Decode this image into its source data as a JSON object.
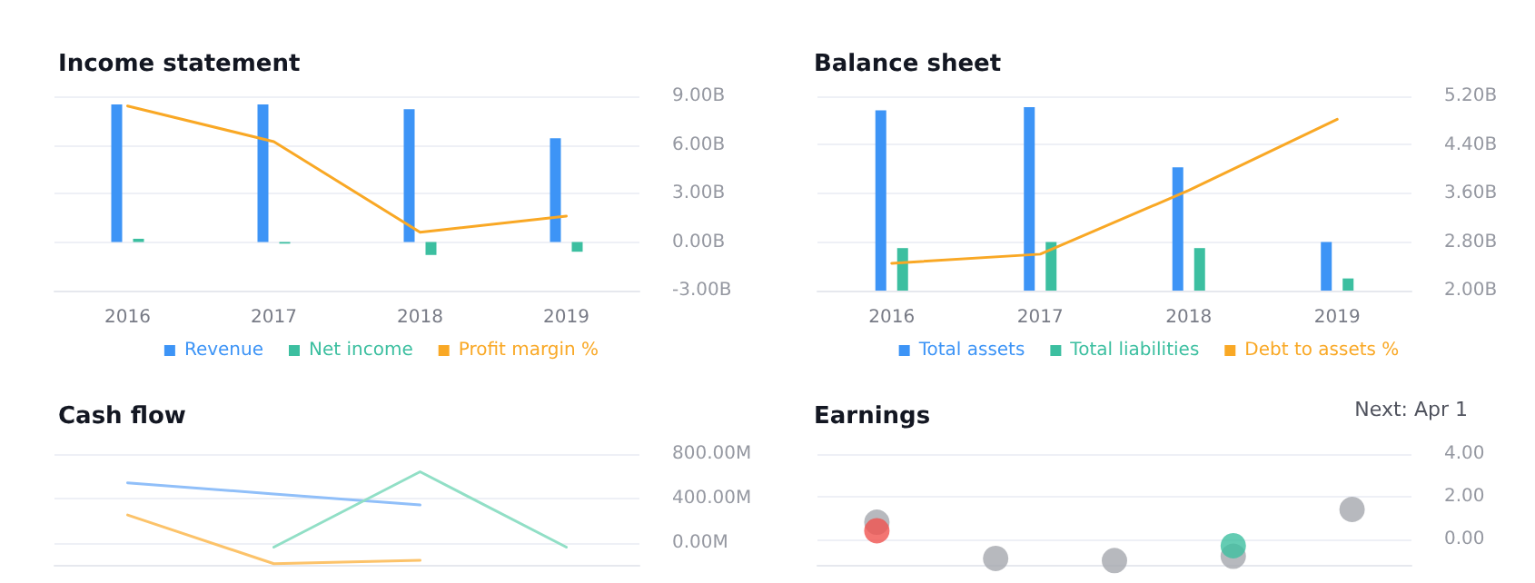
{
  "chart_data": [
    {
      "type": "bar",
      "title": "Income statement",
      "categories": [
        "2016",
        "2017",
        "2018",
        "2019"
      ],
      "series": [
        {
          "name": "Revenue",
          "color": "#3d94f6",
          "values": [
            8.5,
            8.5,
            8.2,
            6.4
          ]
        },
        {
          "name": "Net income",
          "color": "#3cbfa0",
          "values": [
            0.2,
            -0.1,
            -0.8,
            -0.6
          ]
        },
        {
          "name": "Profit margin %",
          "color": "#f9a825",
          "type": "line",
          "values": [
            8.4,
            6.2,
            0.6,
            1.6
          ]
        }
      ],
      "ylim": [
        -3,
        9
      ],
      "yticks": [
        {
          "value": -3,
          "label": "-3.00B"
        },
        {
          "value": 0,
          "label": "0.00B"
        },
        {
          "value": 3,
          "label": "3.00B"
        },
        {
          "value": 6,
          "label": "6.00B"
        },
        {
          "value": 9,
          "label": "9.00B"
        }
      ],
      "grid": "y",
      "legend": "bottom",
      "marker": "none",
      "line_style": "solid"
    },
    {
      "type": "bar",
      "title": "Balance sheet",
      "categories": [
        "2016",
        "2017",
        "2018",
        "2019"
      ],
      "series": [
        {
          "name": "Total assets",
          "color": "#3d94f6",
          "values": [
            4.97,
            5.02,
            4.03,
            2.8
          ]
        },
        {
          "name": "Total liabilities",
          "color": "#3cbfa0",
          "values": [
            2.7,
            2.8,
            2.7,
            2.2
          ]
        },
        {
          "name": "Debt to assets %",
          "color": "#f9a825",
          "type": "line",
          "values": [
            2.45,
            2.6,
            3.65,
            4.82
          ]
        }
      ],
      "ylim": [
        2,
        5.2
      ],
      "yticks": [
        {
          "value": 2,
          "label": "2.00B"
        },
        {
          "value": 2.8,
          "label": "2.80B"
        },
        {
          "value": 3.6,
          "label": "3.60B"
        },
        {
          "value": 4.4,
          "label": "4.40B"
        },
        {
          "value": 5.2,
          "label": "5.20B"
        }
      ],
      "grid": "y",
      "legend": "bottom",
      "marker": "none",
      "line_style": "solid"
    },
    {
      "type": "line",
      "title": "Cash flow",
      "categories": [
        null,
        null,
        null,
        null
      ],
      "series": [
        {
          "color": "#90bff9",
          "values": [
            540,
            440,
            340,
            null
          ]
        },
        {
          "color": "#91dfc6",
          "values": [
            null,
            -40,
            640,
            -40
          ]
        },
        {
          "color": "#fcc36a",
          "values": [
            250,
            -190,
            -160,
            null
          ]
        }
      ],
      "ylim": [
        -200,
        800
      ],
      "yticks": [
        {
          "value": 0,
          "label": "0.00M"
        },
        {
          "value": 400,
          "label": "400.00M"
        },
        {
          "value": 800,
          "label": "800.00M"
        }
      ],
      "grid": "y",
      "marker": "none",
      "line_style": "solid"
    },
    {
      "type": "scatter",
      "title": "Earnings",
      "annotations": [
        "Next: Apr 1"
      ],
      "categories": [
        null,
        null,
        null,
        null,
        null
      ],
      "series": [
        {
          "color": "#a5a7ae",
          "values": [
            0.8,
            -0.9,
            -1.0,
            -0.8,
            1.4
          ]
        },
        {
          "colors": [
            "#f0524f",
            null,
            null,
            "#3dbfa0",
            null
          ],
          "values": [
            0.4,
            null,
            null,
            -0.3,
            null
          ]
        }
      ],
      "ylim": [
        -1.2,
        4
      ],
      "yticks": [
        {
          "value": 0,
          "label": "0.00"
        },
        {
          "value": 2,
          "label": "2.00"
        },
        {
          "value": 4,
          "label": "4.00"
        }
      ],
      "grid": "y",
      "marker": "circle"
    }
  ]
}
